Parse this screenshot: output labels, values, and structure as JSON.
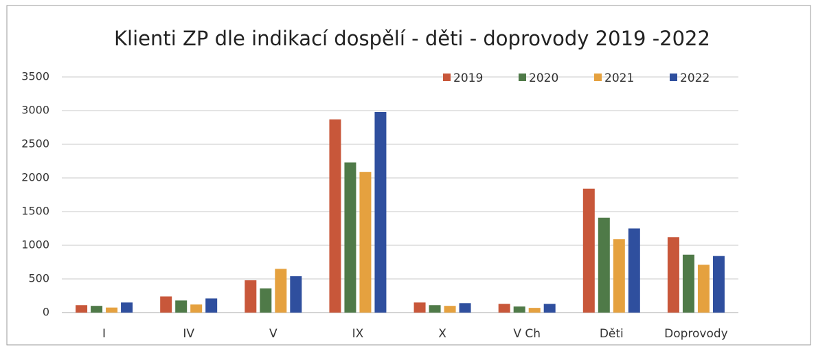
{
  "chart_data": {
    "type": "bar",
    "title": "Klienti ZP dle indikací dospělí - děti - doprovody 2019 -2022",
    "categories": [
      "I",
      "IV",
      "V",
      "IX",
      "X",
      "V Ch",
      "Děti",
      "Doprovody"
    ],
    "series": [
      {
        "name": "2019",
        "color": "#c8573a",
        "values": [
          110,
          240,
          480,
          2870,
          150,
          130,
          1840,
          1120
        ]
      },
      {
        "name": "2020",
        "color": "#4f7a48",
        "values": [
          100,
          180,
          360,
          2230,
          110,
          90,
          1410,
          860
        ]
      },
      {
        "name": "2021",
        "color": "#e5a13f",
        "values": [
          75,
          120,
          650,
          2090,
          100,
          70,
          1090,
          710
        ]
      },
      {
        "name": "2022",
        "color": "#2f4f9e",
        "values": [
          150,
          210,
          540,
          2980,
          140,
          130,
          1250,
          840
        ]
      }
    ],
    "ylim": [
      0,
      3500
    ],
    "yticks": [
      0,
      500,
      1000,
      1500,
      2000,
      2500,
      3000,
      3500
    ],
    "grid": true,
    "legend": "top-right"
  }
}
